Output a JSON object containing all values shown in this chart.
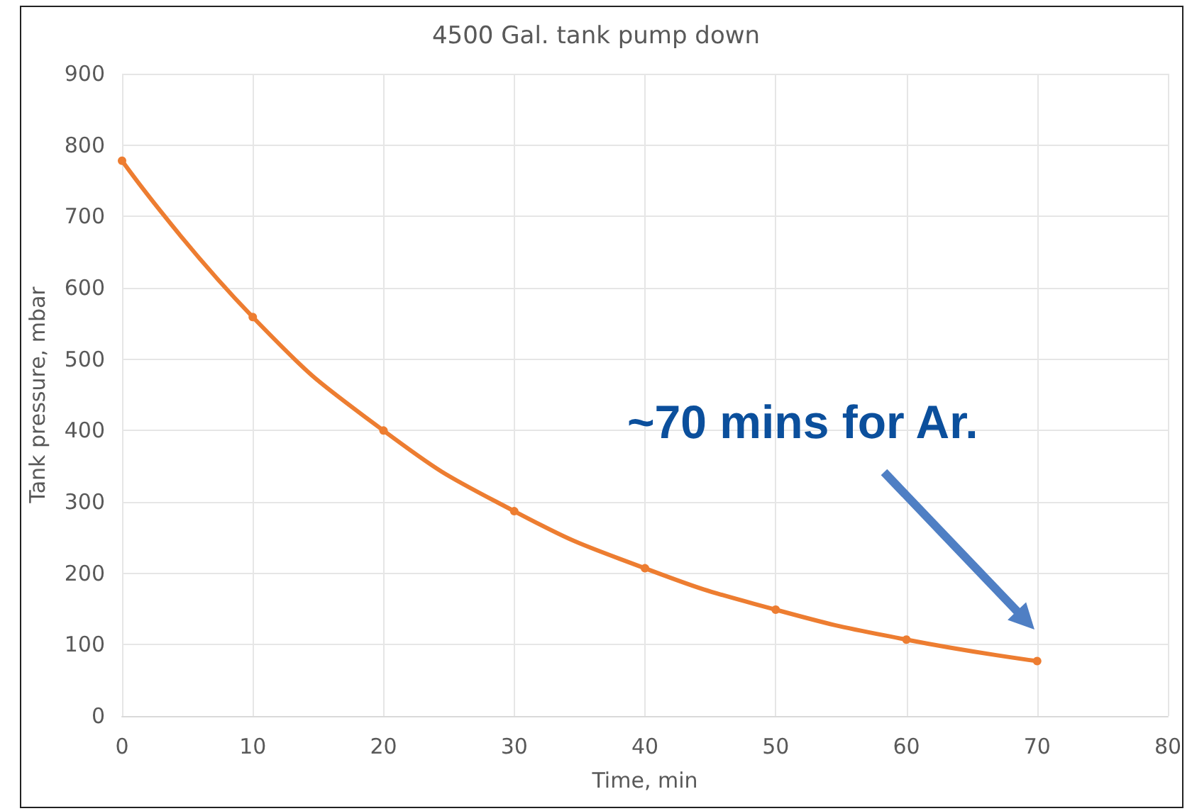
{
  "chart_data": {
    "type": "line",
    "title": "4500 Gal. tank pump down",
    "xlabel": "Time, min",
    "ylabel": "Tank pressure, mbar",
    "x": [
      0,
      10,
      20,
      30,
      40,
      50,
      60,
      70
    ],
    "series": [
      {
        "color": "#ed7d31",
        "values": [
          778,
          559,
          400,
          287,
          207,
          149,
          107,
          77
        ]
      }
    ],
    "xlim": [
      0,
      80
    ],
    "xticks": [
      0,
      10,
      20,
      30,
      40,
      50,
      60,
      70,
      80
    ],
    "ylim": [
      0,
      900
    ],
    "yticks": [
      0,
      100,
      200,
      300,
      400,
      500,
      600,
      700,
      800,
      900
    ],
    "grid": true,
    "marker": "circle",
    "line_style": "solid",
    "annotations": [
      "~70 mins for Ar."
    ]
  }
}
